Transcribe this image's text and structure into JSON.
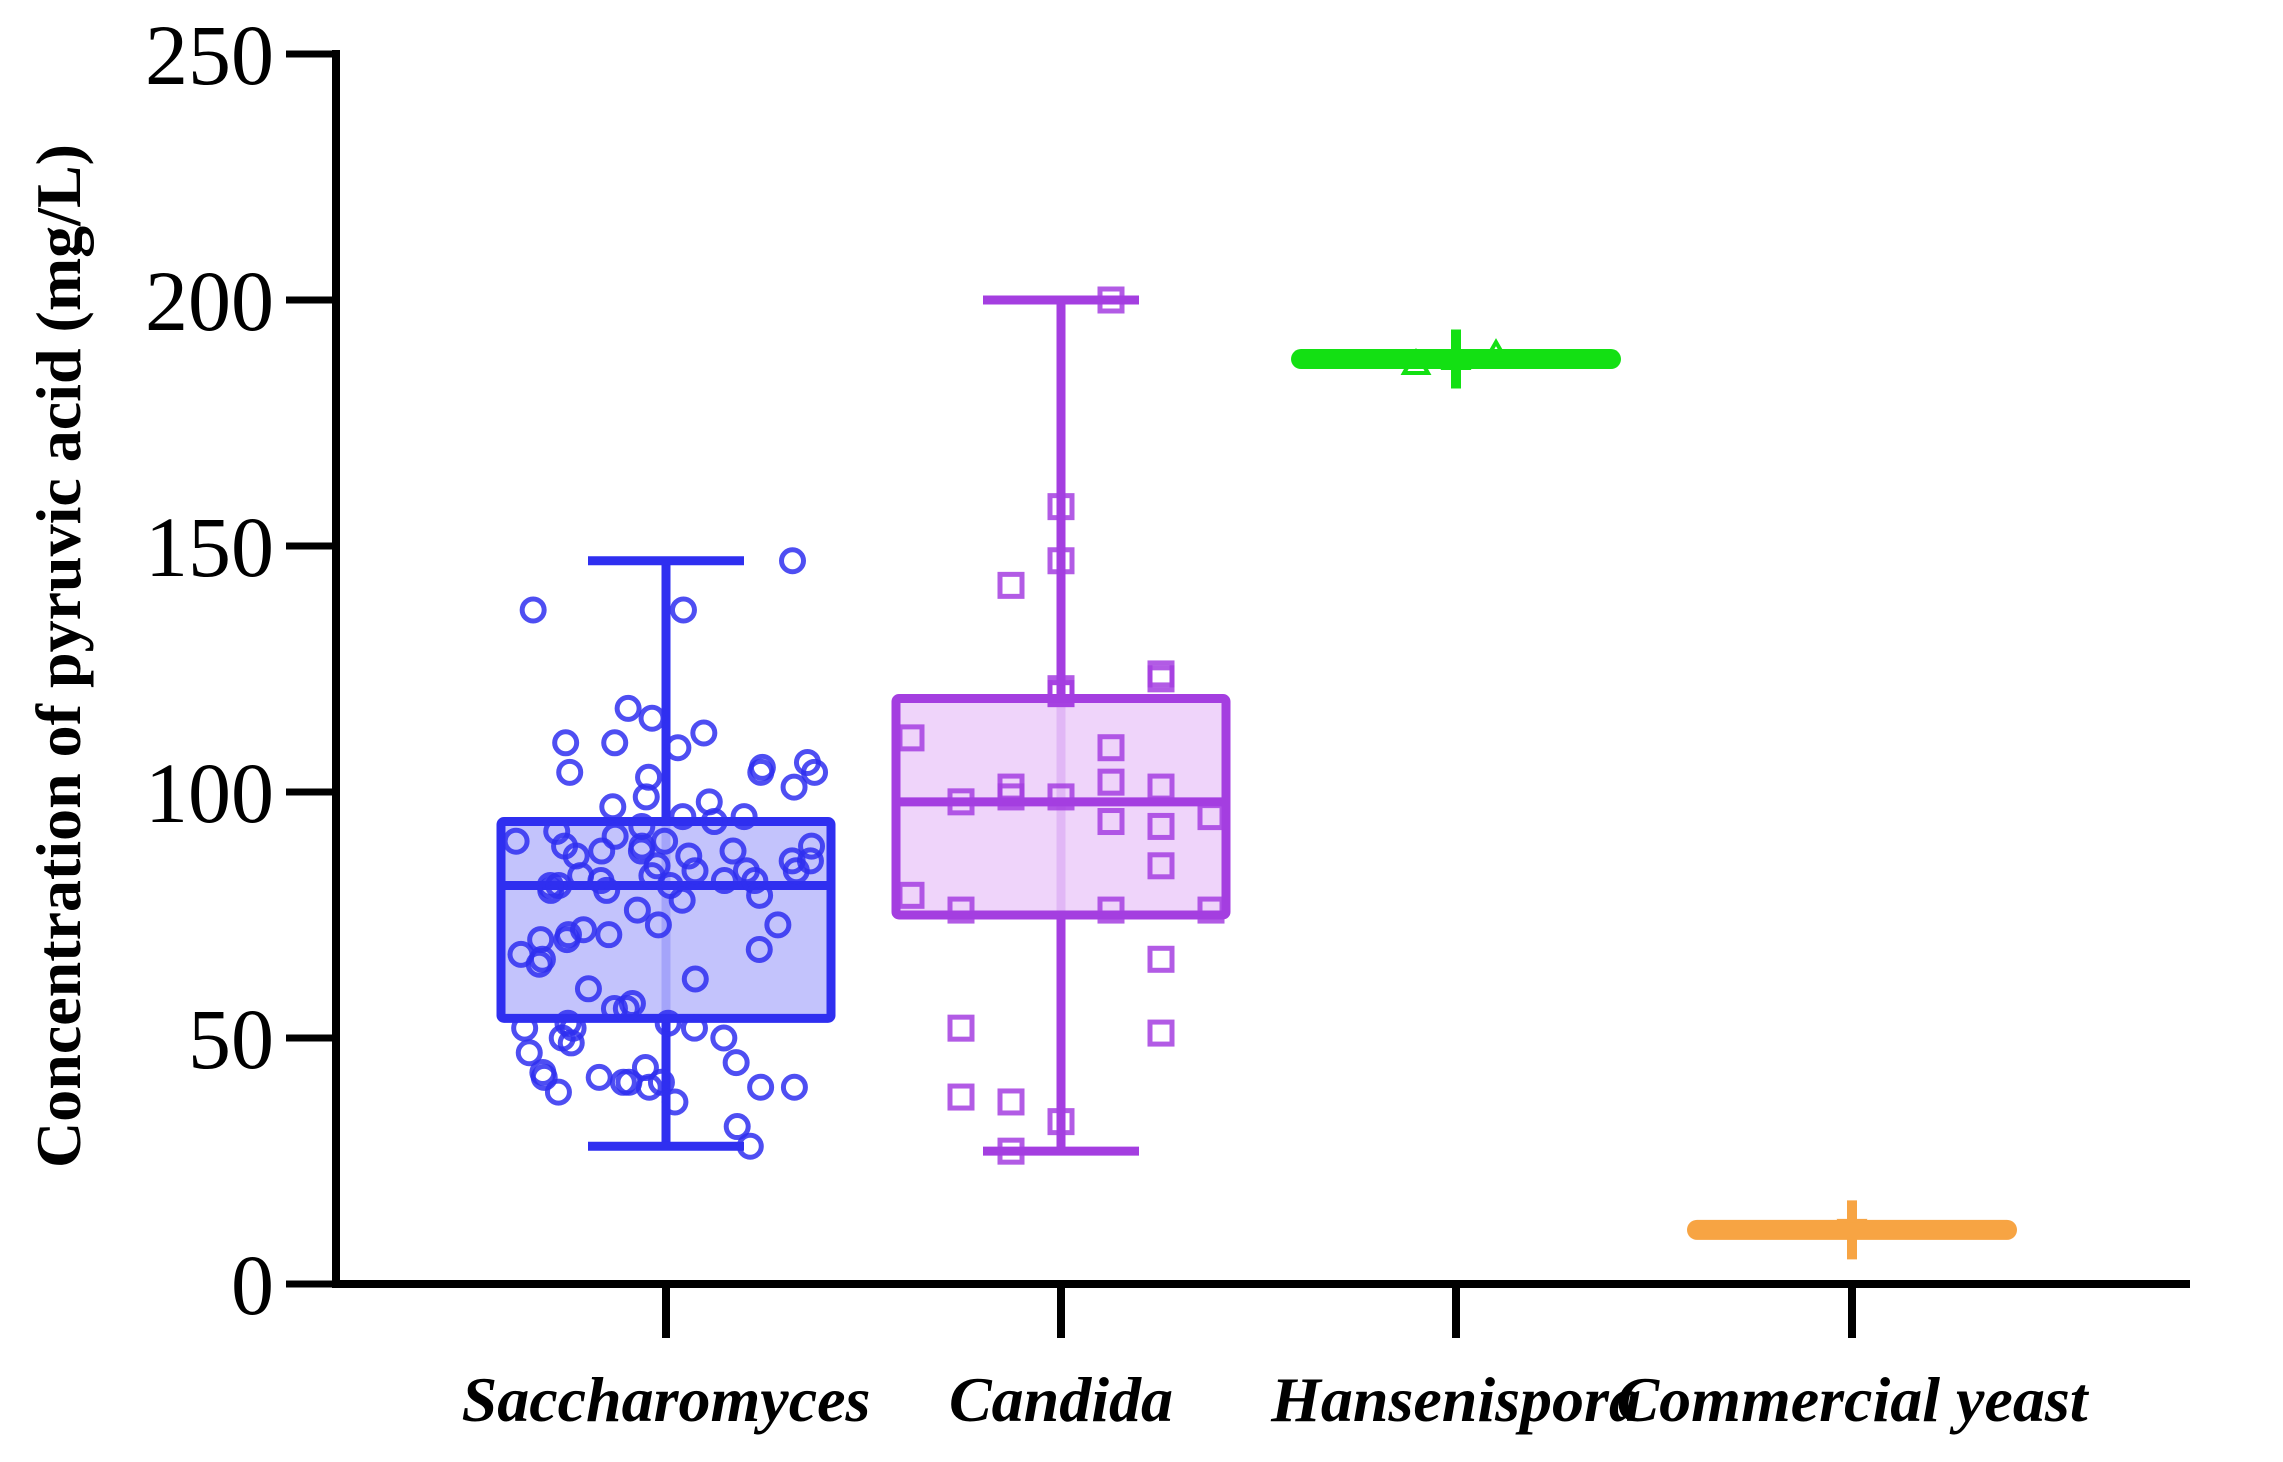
{
  "chart_data": {
    "type": "box",
    "title": "",
    "xlabel": "",
    "ylabel": "Concentration of pyruvic acid (mg/L)",
    "ylim": [
      0,
      250
    ],
    "yticks": [
      0,
      50,
      100,
      150,
      200,
      250
    ],
    "grid": false,
    "legend": "none",
    "categories": [
      "Saccharomyces",
      "Candida",
      "Hansenispora",
      "Commercial yeast"
    ],
    "series": [
      {
        "name": "Saccharomyces",
        "color": "#2f2ff0",
        "fill": "#b9b9fb",
        "marker": "circle",
        "min": 28,
        "q1": 54,
        "median": 81,
        "q3": 94,
        "max": 147,
        "points": [
          147,
          137,
          137,
          117,
          115,
          112,
          110,
          110,
          109,
          106,
          105,
          104,
          104,
          104,
          103,
          101,
          99,
          98,
          97,
          95,
          95,
          94,
          93,
          92,
          91,
          90,
          90,
          89,
          89,
          89,
          88,
          88,
          88,
          87,
          87,
          86,
          86,
          85,
          84,
          84,
          84,
          83,
          83,
          82,
          82,
          82,
          81,
          81,
          81,
          80,
          80,
          79,
          78,
          76,
          73,
          73,
          72,
          71,
          71,
          70,
          70,
          68,
          67,
          66,
          65,
          62,
          60,
          57,
          56,
          56,
          53,
          53,
          52,
          52,
          52,
          50,
          50,
          49,
          47,
          45,
          44,
          43,
          42,
          42,
          41,
          41,
          41,
          40,
          40,
          40,
          39,
          37,
          32,
          28
        ]
      },
      {
        "name": "Candida",
        "color": "#a43ee0",
        "fill": "#eccdf9",
        "marker": "square",
        "min": 27,
        "q1": 75,
        "median": 98,
        "q3": 119,
        "max": 200,
        "points": [
          200,
          158,
          147,
          142,
          124,
          123,
          121,
          120,
          120,
          111,
          109,
          102,
          101,
          101,
          99,
          99,
          98,
          95,
          94,
          93,
          85,
          79,
          76,
          76,
          76,
          66,
          52,
          51,
          38,
          37,
          33,
          27
        ]
      },
      {
        "name": "Hansenispora",
        "color": "#13e013",
        "marker": "triangle",
        "min": 187,
        "q1": 188,
        "median": 188,
        "q3": 188,
        "max": 188,
        "error_high": 194,
        "error_low": 182,
        "points": [
          187,
          188,
          189
        ]
      },
      {
        "name": "Commercial yeast",
        "color": "#f7a443",
        "marker": "triangle-down",
        "min": 11,
        "q1": 11,
        "median": 11,
        "q3": 11,
        "max": 11,
        "error_high": 17,
        "error_low": 5,
        "points": [
          11
        ]
      }
    ]
  }
}
